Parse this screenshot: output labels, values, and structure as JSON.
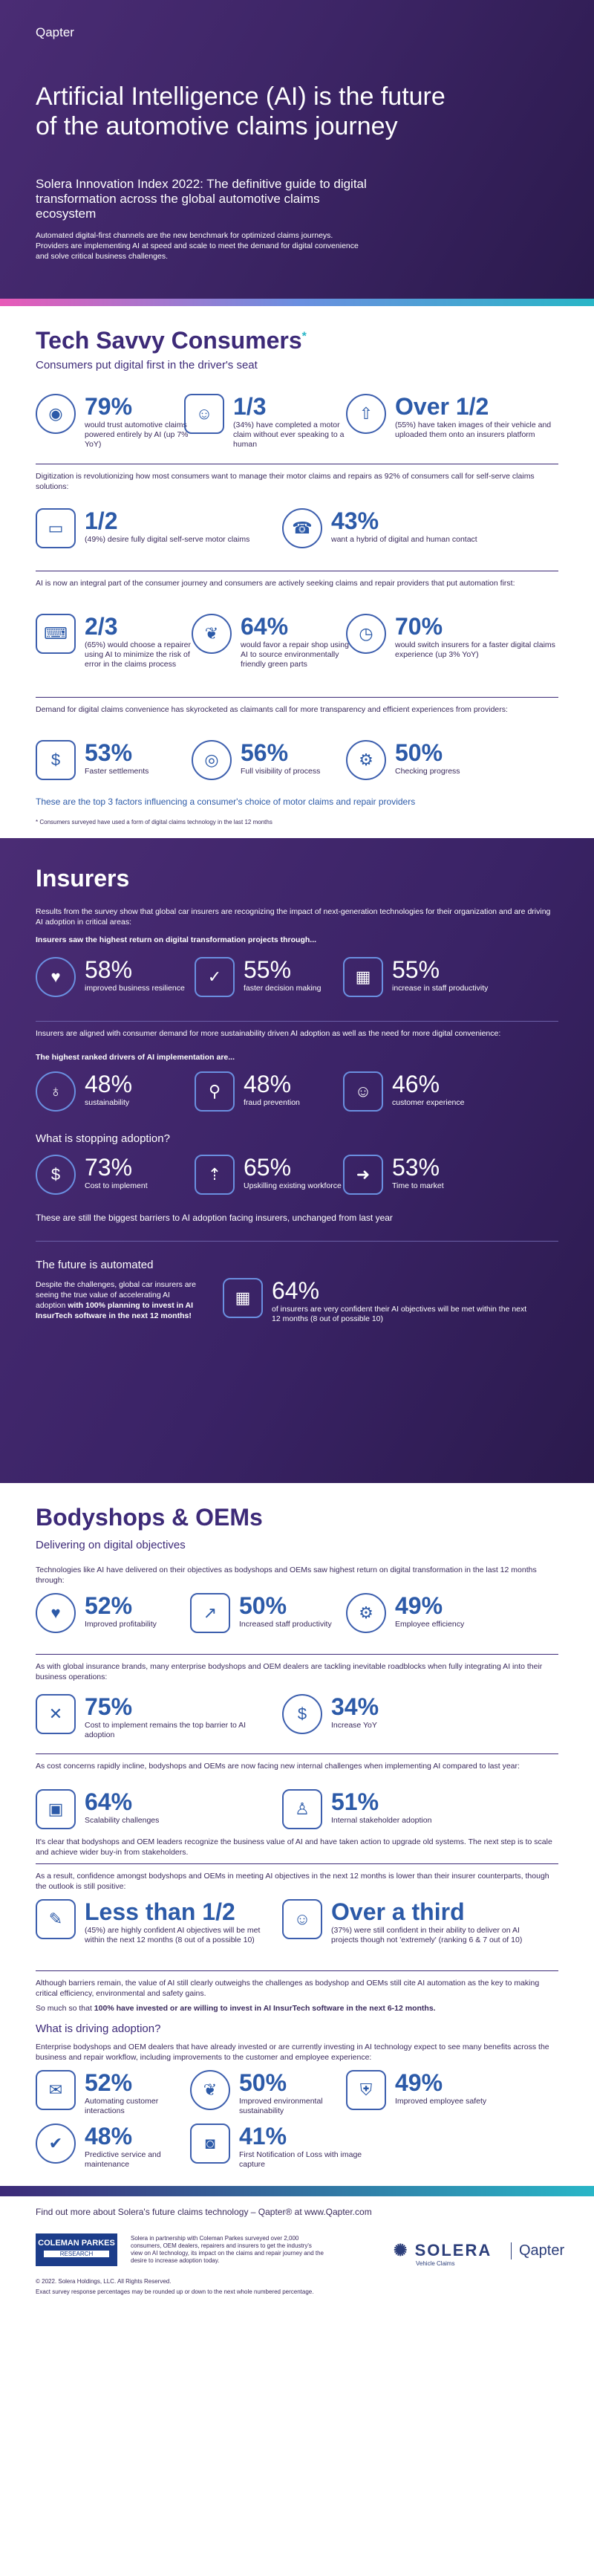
{
  "hero": {
    "logo": "Qapter",
    "title": "Artificial Intelligence (AI) is the future of the automotive claims journey",
    "subtitle": "Solera Innovation Index 2022: The definitive guide to digital transformation across the global automotive claims ecosystem",
    "intro": "Automated digital-first channels are the new benchmark for optimized claims journeys. Providers are implementing AI at speed and scale to meet the demand for digital convenience and solve critical business challenges."
  },
  "consumers": {
    "title": "Tech Savvy Consumers",
    "title_mark": "*",
    "subtitle": "Consumers put digital first in the driver's seat",
    "row1": [
      {
        "icon": "head-brain-icon",
        "value": "79%",
        "text": "would trust automotive claims powered entirely by AI (up 7% YoY)"
      },
      {
        "icon": "robot-icon",
        "value": "1/3",
        "text": "(34%) have completed a motor claim without ever speaking to a human"
      },
      {
        "icon": "car-upload-icon",
        "value": "Over 1/2",
        "text": "(55%) have taken images of their vehicle and uploaded them onto an insurers platform"
      }
    ],
    "p1": "Digitization is revolutionizing how most consumers want to manage their motor claims and repairs as 92% of consumers call for self-serve claims solutions:",
    "row2": [
      {
        "icon": "tablet-icon",
        "value": "1/2",
        "text": "(49%) desire fully digital self-serve motor claims"
      },
      {
        "icon": "headset-agent-icon",
        "value": "43%",
        "text": "want a hybrid of digital and human contact"
      }
    ],
    "p2": "AI is now an integral part of the consumer journey and consumers are actively seeking claims and repair providers that put automation first:",
    "row3": [
      {
        "icon": "laptop-person-icon",
        "value": "2/3",
        "text": "(65%) would choose a repairer using AI to minimize the risk of error in the claims process"
      },
      {
        "icon": "hand-leaf-icon",
        "value": "64%",
        "text": "would favor a repair shop using AI to source environmentally friendly green parts"
      },
      {
        "icon": "stopwatch-icon",
        "value": "70%",
        "text": "would switch insurers for a faster digital claims experience (up 3% YoY)"
      }
    ],
    "p3": "Demand for digital claims convenience has skyrocketed as claimants call for more transparency and efficient experiences from providers:",
    "row4": [
      {
        "icon": "money-icon",
        "value": "53%",
        "text": "Faster settlements"
      },
      {
        "icon": "eye-icon",
        "value": "56%",
        "text": "Full visibility of process"
      },
      {
        "icon": "gear-search-icon",
        "value": "50%",
        "text": "Checking progress"
      }
    ],
    "callout": "These are the top 3 factors influencing a consumer's choice of motor claims and repair providers",
    "footnote": "* Consumers surveyed have used a form of digital claims technology in the last 12 months"
  },
  "insurers": {
    "title": "Insurers",
    "intro": "Results from the survey show that global car insurers are recognizing the impact of next-generation technologies for their organization and are driving AI adoption in critical areas:",
    "lead1": "Insurers saw the highest return on digital transformation projects through...",
    "row1": [
      {
        "icon": "piggy-icon",
        "value": "58%",
        "text": "improved business resilience"
      },
      {
        "icon": "decision-icon",
        "value": "55%",
        "text": "faster decision making"
      },
      {
        "icon": "presenter-icon",
        "value": "55%",
        "text": "increase in staff productivity"
      }
    ],
    "p2": "Insurers are aligned with consumer demand for more sustainability driven AI adoption as well as the need for more digital convenience:",
    "lead2": "The highest ranked drivers of AI implementation are...",
    "row2": [
      {
        "icon": "globe-hand-icon",
        "value": "48%",
        "text": "sustainability"
      },
      {
        "icon": "detective-icon",
        "value": "48%",
        "text": "fraud prevention"
      },
      {
        "icon": "faces-icon",
        "value": "46%",
        "text": "customer experience"
      }
    ],
    "stop_title": "What is stopping adoption?",
    "row3": [
      {
        "icon": "money-bag-icon",
        "value": "73%",
        "text": "Cost to implement"
      },
      {
        "icon": "people-up-icon",
        "value": "65%",
        "text": "Upskilling existing workforce"
      },
      {
        "icon": "arrows-icon",
        "value": "53%",
        "text": "Time to market"
      }
    ],
    "callout": "These are still the biggest barriers to AI adoption facing insurers, unchanged from last year",
    "future_title": "The future is automated",
    "future_text_a": "Despite the challenges, global car insurers are seeing the true value of accelerating AI adoption ",
    "future_text_b": "with 100% planning to invest in AI InsurTech software in the next 12 months!",
    "future_value": "64%",
    "future_desc": "of insurers are very confident their AI objectives will be met within the next 12 months (8 out of possible 10)",
    "future_icon": "calendar-icon"
  },
  "bodyshops": {
    "title": "Bodyshops & OEMs",
    "subtitle": "Delivering on digital objectives",
    "p1": "Technologies like AI have delivered on their objectives as bodyshops and OEMs saw highest return on digital transformation in the last 12 months through:",
    "row1": [
      {
        "icon": "piggy-icon",
        "value": "52%",
        "text": "Improved profitability"
      },
      {
        "icon": "chart-up-icon",
        "value": "50%",
        "text": "Increased staff productivity"
      },
      {
        "icon": "gear-icon",
        "value": "49%",
        "text": "Employee efficiency"
      }
    ],
    "p2": "As with global insurance brands, many enterprise bodyshops and OEM dealers are tackling inevitable roadblocks when fully integrating AI into their business operations:",
    "row2": [
      {
        "icon": "money-cross-icon",
        "value": "75%",
        "text": "Cost to implement remains the top barrier to AI adoption"
      },
      {
        "icon": "dollar-up-icon",
        "value": "34%",
        "text": "Increase YoY"
      }
    ],
    "p3": "As cost concerns rapidly incline, bodyshops and OEMs are now facing new internal challenges when implementing AI compared to last year:",
    "row3": [
      {
        "icon": "box-icon",
        "value": "64%",
        "text": "Scalability challenges"
      },
      {
        "icon": "stakeholders-icon",
        "value": "51%",
        "text": "Internal stakeholder adoption"
      }
    ],
    "p4": "It's clear that bodyshops and OEM leaders recognize the business value of AI and have taken action to upgrade old systems. The next step is to scale and achieve wider buy-in from stakeholders.",
    "p5": "As a result, confidence amongst bodyshops and OEMs in meeting AI objectives in the next 12 months is lower than their insurer counterparts, though the outlook is still positive:",
    "row4": [
      {
        "icon": "checklist-icon",
        "value": "Less than 1/2",
        "text": "(45%) are highly confident AI objectives will be met within the next 12 months (8 out of a possible 10)"
      },
      {
        "icon": "robot-hand-icon",
        "value": "Over a third",
        "text": "(37%) were still confident in their ability to deliver on AI projects though not 'extremely' (ranking 6 & 7 out of 10)"
      }
    ],
    "p6": "Although barriers remain, the value of AI still clearly outweighs the challenges as bodyshop and OEMs still cite AI automation as the key to making critical efficiency, environmental and safety gains.",
    "p7_a": "So much so that ",
    "p7_b": "100% have invested or are willing to invest in AI InsurTech software in the next 6-12 months.",
    "drive_title": "What is driving adoption?",
    "drive_text": "Enterprise bodyshops and OEM dealers that have already invested or are currently investing in AI technology expect to see many benefits across the business and repair workflow, including improvements to the customer and employee experience:",
    "row5": [
      {
        "icon": "chat-icon",
        "value": "52%",
        "text": "Automating customer interactions"
      },
      {
        "icon": "leaf-icon",
        "value": "50%",
        "text": "Improved environmental sustainability"
      },
      {
        "icon": "shield-icon",
        "value": "49%",
        "text": "Improved employee safety"
      }
    ],
    "row6": [
      {
        "icon": "wrench-icon",
        "value": "48%",
        "text": "Predictive service and maintenance"
      },
      {
        "icon": "camera-icon",
        "value": "41%",
        "text": "First Notification of Loss with image capture"
      }
    ]
  },
  "footer": {
    "find_more": "Find out more about Solera's future claims technology – Qapter® at www.Qapter.com",
    "partner_logo": "COLEMAN PARKES",
    "partner_sub": "RESEARCH",
    "partner_text": "Solera in partnership with Coleman Parkes surveyed over 2,000 consumers, OEM dealers, repairers and insurers to get the industry's view on AI technology, its impact on the claims and repair journey and the desire to increase adoption today.",
    "copyright": "© 2022. Solera Holdings, LLC. All Rights Reserved.",
    "rounding": "Exact survey response percentages may be rounded up or down to the next whole numbered percentage.",
    "solera": "SOLERA",
    "solera_sub": "Vehicle Claims",
    "qapter": "Qapter"
  }
}
